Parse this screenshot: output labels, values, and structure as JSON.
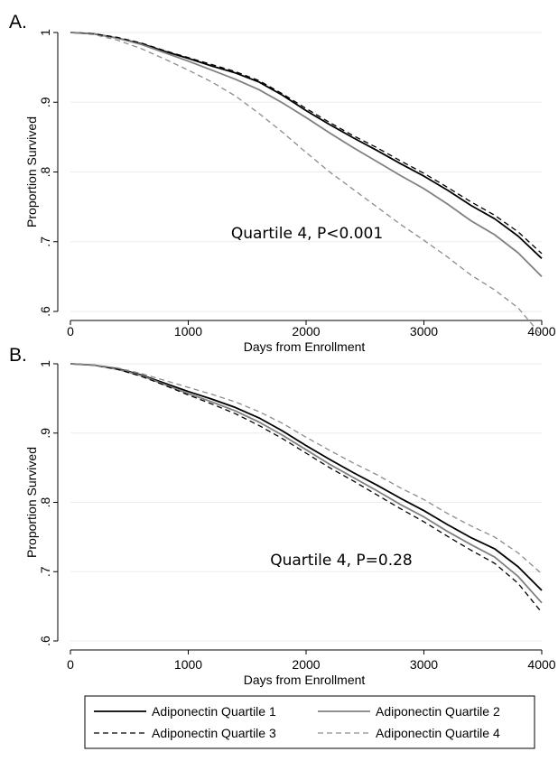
{
  "chart_data": [
    {
      "type": "line",
      "panel_label": "A.",
      "xlabel": "Days from Enrollment",
      "ylabel": "Proportion Survived",
      "xlim": [
        0,
        4000
      ],
      "ylim": [
        0.6,
        1.0
      ],
      "x_ticks": [
        0,
        1000,
        2000,
        3000,
        4000
      ],
      "x_tick_labels": [
        "0",
        "1000",
        "2000",
        "3000",
        "4000"
      ],
      "y_ticks": [
        0.6,
        0.7,
        0.8,
        0.9,
        1.0
      ],
      "y_tick_labels": [
        ".6",
        ".7",
        ".8",
        ".9",
        "1"
      ],
      "grid": "horizontal",
      "annotation": "Quartile 4, P<0.001",
      "series": [
        {
          "name": "Adiponectin Quartile 1",
          "color": "#000000",
          "dash": "solid",
          "x": [
            0,
            200,
            400,
            600,
            800,
            1000,
            1200,
            1400,
            1600,
            1800,
            2000,
            2200,
            2400,
            2600,
            2800,
            3000,
            3200,
            3400,
            3600,
            3800,
            4000
          ],
          "y": [
            1.0,
            0.998,
            0.992,
            0.984,
            0.973,
            0.963,
            0.952,
            0.942,
            0.929,
            0.91,
            0.888,
            0.868,
            0.849,
            0.831,
            0.812,
            0.794,
            0.774,
            0.752,
            0.733,
            0.708,
            0.676
          ]
        },
        {
          "name": "Adiponectin Quartile 2",
          "color": "#808080",
          "dash": "solid",
          "x": [
            0,
            200,
            400,
            600,
            800,
            1000,
            1200,
            1400,
            1600,
            1800,
            2000,
            2200,
            2400,
            2600,
            2800,
            3000,
            3200,
            3400,
            3600,
            3800,
            4000
          ],
          "y": [
            1.0,
            0.998,
            0.992,
            0.983,
            0.971,
            0.959,
            0.946,
            0.933,
            0.918,
            0.899,
            0.878,
            0.856,
            0.835,
            0.815,
            0.795,
            0.776,
            0.754,
            0.73,
            0.71,
            0.684,
            0.65
          ]
        },
        {
          "name": "Adiponectin Quartile 3",
          "color": "#000000",
          "dash": "dashed",
          "x": [
            0,
            200,
            400,
            600,
            800,
            1000,
            1200,
            1400,
            1600,
            1800,
            2000,
            2200,
            2400,
            2600,
            2800,
            3000,
            3200,
            3400,
            3600,
            3800,
            4000
          ],
          "y": [
            1.0,
            0.998,
            0.993,
            0.985,
            0.974,
            0.964,
            0.954,
            0.944,
            0.931,
            0.912,
            0.891,
            0.871,
            0.852,
            0.835,
            0.816,
            0.798,
            0.778,
            0.757,
            0.738,
            0.714,
            0.683
          ]
        },
        {
          "name": "Adiponectin Quartile 4",
          "color": "#8c8c8c",
          "dash": "dashed",
          "x": [
            0,
            200,
            400,
            600,
            800,
            1000,
            1200,
            1400,
            1600,
            1800,
            2000,
            2200,
            2400,
            2600,
            2800,
            3000,
            3200,
            3400,
            3600,
            3800,
            4000
          ],
          "y": [
            1.0,
            0.997,
            0.989,
            0.977,
            0.962,
            0.946,
            0.929,
            0.909,
            0.884,
            0.857,
            0.828,
            0.8,
            0.775,
            0.75,
            0.725,
            0.702,
            0.678,
            0.652,
            0.631,
            0.605,
            0.565
          ]
        }
      ]
    },
    {
      "type": "line",
      "panel_label": "B.",
      "xlabel": "Days from Enrollment",
      "ylabel": "Proportion Survived",
      "xlim": [
        0,
        4000
      ],
      "ylim": [
        0.6,
        1.0
      ],
      "x_ticks": [
        0,
        1000,
        2000,
        3000,
        4000
      ],
      "x_tick_labels": [
        "0",
        "1000",
        "2000",
        "3000",
        "4000"
      ],
      "y_ticks": [
        0.6,
        0.7,
        0.8,
        0.9,
        1.0
      ],
      "y_tick_labels": [
        ".6",
        ".7",
        ".8",
        ".9",
        "1"
      ],
      "grid": "horizontal",
      "annotation": "Quartile 4, P=0.28",
      "series": [
        {
          "name": "Adiponectin Quartile 1",
          "color": "#000000",
          "dash": "solid",
          "x": [
            0,
            200,
            400,
            600,
            800,
            1000,
            1200,
            1400,
            1600,
            1800,
            2000,
            2200,
            2400,
            2600,
            2800,
            3000,
            3200,
            3400,
            3600,
            3800,
            4000
          ],
          "y": [
            1.0,
            0.998,
            0.993,
            0.984,
            0.972,
            0.96,
            0.949,
            0.937,
            0.922,
            0.903,
            0.882,
            0.862,
            0.843,
            0.825,
            0.806,
            0.788,
            0.768,
            0.749,
            0.733,
            0.707,
            0.673
          ]
        },
        {
          "name": "Adiponectin Quartile 2",
          "color": "#808080",
          "dash": "solid",
          "x": [
            0,
            200,
            400,
            600,
            800,
            1000,
            1200,
            1400,
            1600,
            1800,
            2000,
            2200,
            2400,
            2600,
            2800,
            3000,
            3200,
            3400,
            3600,
            3800,
            4000
          ],
          "y": [
            1.0,
            0.998,
            0.992,
            0.983,
            0.97,
            0.957,
            0.945,
            0.932,
            0.916,
            0.897,
            0.876,
            0.855,
            0.836,
            0.817,
            0.797,
            0.779,
            0.758,
            0.739,
            0.721,
            0.693,
            0.655
          ]
        },
        {
          "name": "Adiponectin Quartile 3",
          "color": "#000000",
          "dash": "dashed",
          "x": [
            0,
            200,
            400,
            600,
            800,
            1000,
            1200,
            1400,
            1600,
            1800,
            2000,
            2200,
            2400,
            2600,
            2800,
            3000,
            3200,
            3400,
            3600,
            3800,
            4000
          ],
          "y": [
            1.0,
            0.998,
            0.992,
            0.982,
            0.969,
            0.955,
            0.942,
            0.928,
            0.911,
            0.892,
            0.871,
            0.85,
            0.831,
            0.811,
            0.791,
            0.772,
            0.751,
            0.731,
            0.712,
            0.683,
            0.641
          ]
        },
        {
          "name": "Adiponectin Quartile 4",
          "color": "#8c8c8c",
          "dash": "dashed",
          "x": [
            0,
            200,
            400,
            600,
            800,
            1000,
            1200,
            1400,
            1600,
            1800,
            2000,
            2200,
            2400,
            2600,
            2800,
            3000,
            3200,
            3400,
            3600,
            3800,
            4000
          ],
          "y": [
            1.0,
            0.998,
            0.994,
            0.986,
            0.976,
            0.966,
            0.956,
            0.945,
            0.931,
            0.914,
            0.894,
            0.875,
            0.857,
            0.84,
            0.821,
            0.804,
            0.784,
            0.766,
            0.75,
            0.727,
            0.697
          ]
        }
      ]
    }
  ],
  "legend": {
    "placement": "bottom",
    "entries": [
      {
        "label": "Adiponectin Quartile 1",
        "color": "#000000",
        "dash": "solid"
      },
      {
        "label": "Adiponectin Quartile 2",
        "color": "#808080",
        "dash": "solid"
      },
      {
        "label": "Adiponectin Quartile 3",
        "color": "#000000",
        "dash": "dashed"
      },
      {
        "label": "Adiponectin Quartile 4",
        "color": "#8c8c8c",
        "dash": "dashed"
      }
    ]
  }
}
